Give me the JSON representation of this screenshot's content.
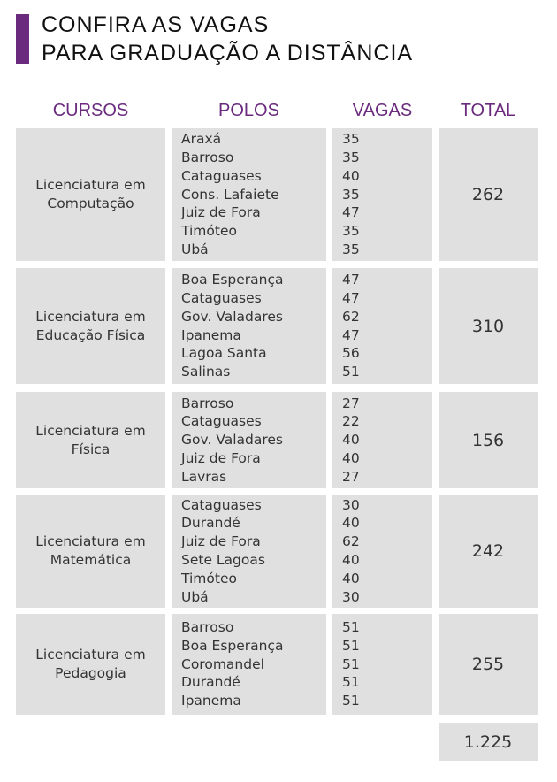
{
  "title": {
    "line1": "CONFIRA AS VAGAS",
    "line2": "PARA GRADUAÇÃO A DISTÂNCIA"
  },
  "headers": {
    "cursos": "CURSOS",
    "polos": "POLOS",
    "vagas": "VAGAS",
    "total": "TOTAL"
  },
  "colors": {
    "accent": "#6a2a7e",
    "cell_bg": "#e0e0e0"
  },
  "rows": [
    {
      "curso": [
        "Licenciatura em",
        "Computação"
      ],
      "polos": [
        "Araxá",
        "Barroso",
        "Cataguases",
        "Cons. Lafaiete",
        "Juiz de Fora",
        "Timóteo",
        "Ubá"
      ],
      "vagas": [
        "35",
        "35",
        "40",
        "35",
        "47",
        "35",
        "35"
      ],
      "total": "262"
    },
    {
      "curso": [
        "Licenciatura em",
        "Educação Física"
      ],
      "polos": [
        "Boa Esperança",
        "Cataguases",
        "Gov. Valadares",
        "Ipanema",
        "Lagoa Santa",
        "Salinas"
      ],
      "vagas": [
        "47",
        "47",
        "62",
        "47",
        "56",
        "51"
      ],
      "total": "310"
    },
    {
      "curso": [
        "Licenciatura em",
        "Física"
      ],
      "polos": [
        "Barroso",
        "Cataguases",
        "Gov. Valadares",
        "Juiz de Fora",
        "Lavras"
      ],
      "vagas": [
        "27",
        "22",
        "40",
        "40",
        "27"
      ],
      "total": "156"
    },
    {
      "curso": [
        "Licenciatura em",
        "Matemática"
      ],
      "polos": [
        "Cataguases",
        "Durandé",
        "Juiz de Fora",
        "Sete Lagoas",
        "Timóteo",
        "Ubá"
      ],
      "vagas": [
        "30",
        "40",
        "62",
        "40",
        "40",
        "30"
      ],
      "total": "242"
    },
    {
      "curso": [
        "Licenciatura em",
        "Pedagogia"
      ],
      "polos": [
        "Barroso",
        "Boa Esperança",
        "Coromandel",
        "Durandé",
        "Ipanema"
      ],
      "vagas": [
        "51",
        "51",
        "51",
        "51",
        "51"
      ],
      "total": "255"
    }
  ],
  "grand_total": "1.225"
}
